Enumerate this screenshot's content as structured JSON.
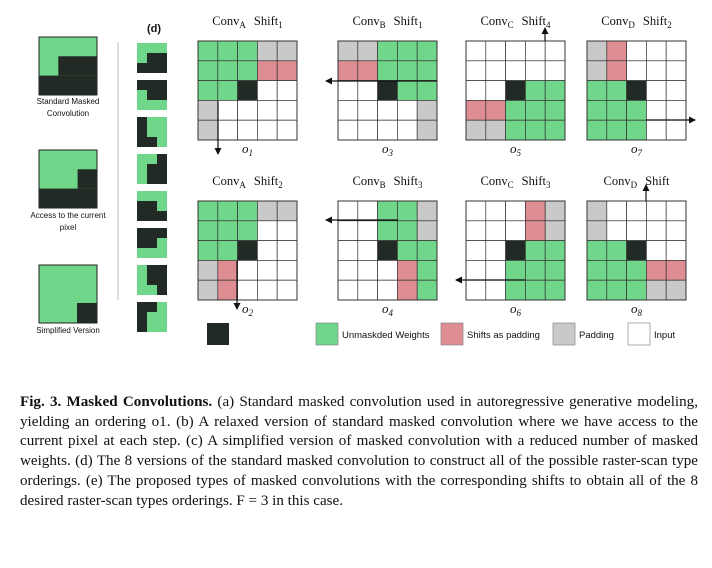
{
  "figure": {
    "left_captions": [
      [
        "Standard Masked",
        "Convolution"
      ],
      [
        "Access to the current",
        "pixel"
      ],
      [
        "Simplified Version"
      ]
    ],
    "d_label": "(d)",
    "panels": [
      {
        "conv": "Conv",
        "conv_sub": "A",
        "shift": "Shift",
        "shift_sub": "1",
        "o": "o",
        "o_sub": "1"
      },
      {
        "conv": "Conv",
        "conv_sub": "B",
        "shift": "Shift",
        "shift_sub": "1",
        "o": "o",
        "o_sub": "3"
      },
      {
        "conv": "Conv",
        "conv_sub": "C",
        "shift": "Shift",
        "shift_sub": "4",
        "o": "o",
        "o_sub": "5"
      },
      {
        "conv": "Conv",
        "conv_sub": "D",
        "shift": "Shift",
        "shift_sub": "2",
        "o": "o",
        "o_sub": "7"
      },
      {
        "conv": "Conv",
        "conv_sub": "A",
        "shift": "Shift",
        "shift_sub": "2",
        "o": "o",
        "o_sub": "2"
      },
      {
        "conv": "Conv",
        "conv_sub": "B",
        "shift": "Shift",
        "shift_sub": "3",
        "o": "o",
        "o_sub": "4"
      },
      {
        "conv": "Conv",
        "conv_sub": "C",
        "shift": "Shift",
        "shift_sub": "3",
        "o": "o",
        "o_sub": "6"
      },
      {
        "conv": "Conv",
        "conv_sub": "D",
        "shift": "Shift",
        "shift_sub": "",
        "o": "o",
        "o_sub": "8"
      }
    ],
    "legend": {
      "unmasked": "Unmaskded Weights",
      "shifts": "Shifts as padding",
      "padding": "Padding",
      "input": "Input"
    },
    "colors": {
      "green": "#6fd68a",
      "dark": "#222a26",
      "pink": "#de8d92",
      "gray": "#c9c9c9",
      "white": "#ffffff"
    }
  },
  "caption": {
    "fig_no": "Fig. 3.",
    "title": "Masked Convolutions.",
    "text": " (a) Standard masked convolution used in autoregressive generative modeling, yielding an ordering o1. (b) A relaxed version of standard masked convolution where we have access to the current pixel at each step. (c) A simplified version of masked convolution with a reduced number of masked weights. (d) The 8 versions of the standard masked convolution to construct all of the possible raster-scan type orderings. (e) The proposed types of masked convolutions with the corresponding shifts to obtain all of the 8 desired raster-scan types orderings. F = 3 in this case."
  }
}
